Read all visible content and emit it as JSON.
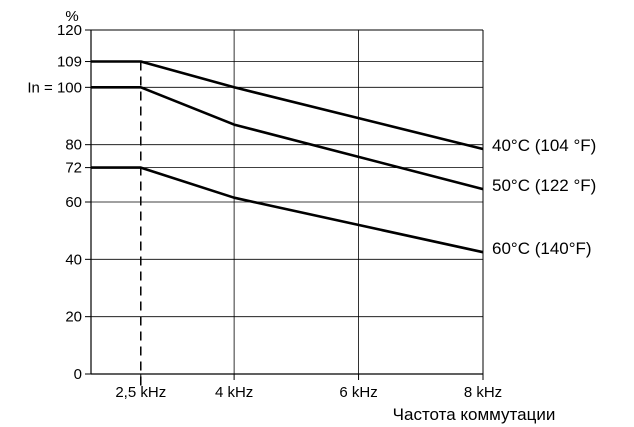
{
  "chart_data": {
    "type": "line",
    "xlabel": "Частота коммутации",
    "ylabel_unit": "%",
    "xlim": [
      1.7,
      8
    ],
    "ylim": [
      0,
      120
    ],
    "x_ticks": [
      {
        "value": 2.5,
        "label": "2,5 kHz"
      },
      {
        "value": 4,
        "label": "4 kHz"
      },
      {
        "value": 6,
        "label": "6 kHz"
      },
      {
        "value": 8,
        "label": "8 kHz"
      }
    ],
    "y_ticks": [
      {
        "value": 0,
        "label": "0"
      },
      {
        "value": 20,
        "label": "20"
      },
      {
        "value": 40,
        "label": "40"
      },
      {
        "value": 60,
        "label": "60"
      },
      {
        "value": 72,
        "label": "72"
      },
      {
        "value": 80,
        "label": "80"
      },
      {
        "value": 100,
        "label": "In = 100"
      },
      {
        "value": 109,
        "label": "109"
      },
      {
        "value": 120,
        "label": "120"
      }
    ],
    "grid": true,
    "reference_line": {
      "x": 2.5,
      "style": "dashed"
    },
    "series": [
      {
        "name": "40°C (104 °F)",
        "x": [
          1.7,
          2.5,
          4,
          8
        ],
        "y": [
          109,
          109,
          100,
          78.5
        ]
      },
      {
        "name": "50°C (122 °F)",
        "x": [
          1.7,
          2.5,
          4,
          8
        ],
        "y": [
          100,
          100,
          87,
          64.5
        ]
      },
      {
        "name": "60°C (140°F)",
        "x": [
          1.7,
          2.5,
          4,
          8
        ],
        "y": [
          72,
          72,
          61.5,
          42.5
        ]
      }
    ]
  }
}
